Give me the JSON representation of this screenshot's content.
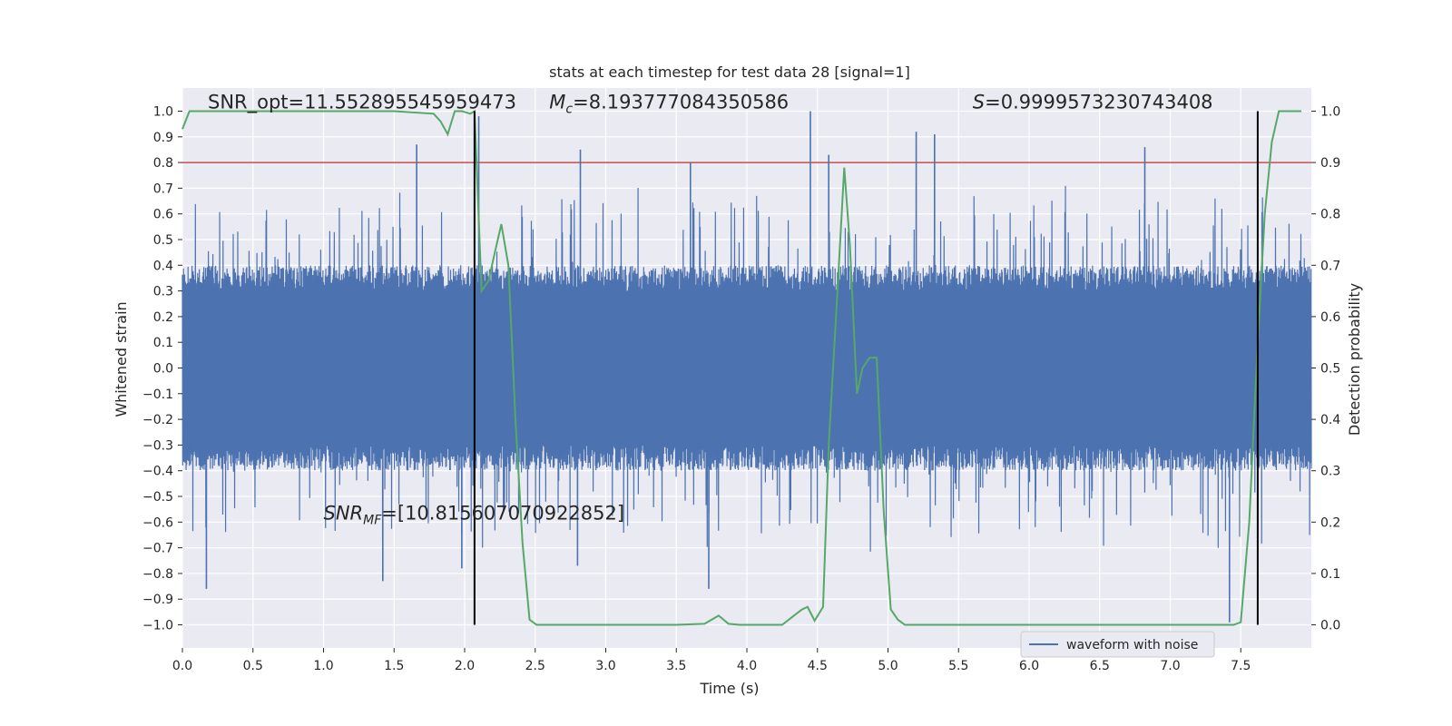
{
  "chart_data": {
    "type": "line",
    "title": "stats at each timestep for test data 28 [signal=1]",
    "xlabel": "Time (s)",
    "ylabel_left": "Whitened strain",
    "ylabel_right": "Detection probability",
    "xlim": [
      0.0,
      8.0
    ],
    "ylim_left": [
      -1.09,
      1.09
    ],
    "ylim_right": [
      -0.045,
      1.045
    ],
    "x_ticks": [
      0.0,
      0.5,
      1.0,
      1.5,
      2.0,
      2.5,
      3.0,
      3.5,
      4.0,
      4.5,
      5.0,
      5.5,
      6.0,
      6.5,
      7.0,
      7.5
    ],
    "x_tick_labels": [
      "0.0",
      "0.5",
      "1.0",
      "1.5",
      "2.0",
      "2.5",
      "3.0",
      "3.5",
      "4.0",
      "4.5",
      "5.0",
      "5.5",
      "6.0",
      "6.5",
      "7.0",
      "7.5"
    ],
    "y_left_ticks": [
      1.0,
      0.9,
      0.8,
      0.7,
      0.6,
      0.5,
      0.4,
      0.3,
      0.2,
      0.1,
      0.0,
      -0.1,
      -0.2,
      -0.3,
      -0.4,
      -0.5,
      -0.6,
      -0.7,
      -0.8,
      -0.9,
      -1.0
    ],
    "y_left_tick_labels": [
      "1.0",
      "0.9",
      "0.8",
      "0.7",
      "0.6",
      "0.5",
      "0.4",
      "0.3",
      "0.2",
      "0.1",
      "0.0",
      "−0.1",
      "−0.2",
      "−0.3",
      "−0.4",
      "−0.5",
      "−0.6",
      "−0.7",
      "−0.8",
      "−0.9",
      "−1.0"
    ],
    "y_right_ticks": [
      1.0,
      0.9,
      0.8,
      0.7,
      0.6,
      0.5,
      0.4,
      0.3,
      0.2,
      0.1,
      0.0
    ],
    "y_right_tick_labels": [
      "1.0",
      "0.9",
      "0.8",
      "0.7",
      "0.6",
      "0.5",
      "0.4",
      "0.3",
      "0.2",
      "0.1",
      "0.0"
    ],
    "threshold": {
      "axis": "right",
      "value": 0.9,
      "color": "#c44e52"
    },
    "vertical_markers": [
      {
        "x": 2.07,
        "y_range_left": [
          -1.0,
          1.0
        ],
        "color": "#000000"
      },
      {
        "x": 7.62,
        "y_range_left": [
          -1.0,
          1.0
        ],
        "color": "#000000"
      }
    ],
    "series": [
      {
        "name": "waveform with noise",
        "axis": "left",
        "color": "#4c72b0",
        "description": "dense noisy whitened strain signal, typical amplitude about ±0.4, peaks to about ±0.85",
        "sampling": {
          "n": 4000,
          "seed": 28,
          "core_amplitude": 0.4,
          "peak_amplitude": 0.72
        },
        "spikes": [
          {
            "x": 1.66,
            "y": 0.87
          },
          {
            "x": 2.82,
            "y": 0.85
          },
          {
            "x": 3.6,
            "y": 0.8
          },
          {
            "x": 4.45,
            "y": 1.0
          },
          {
            "x": 4.58,
            "y": 0.83
          },
          {
            "x": 5.2,
            "y": 0.92
          },
          {
            "x": 5.33,
            "y": 0.91
          },
          {
            "x": 6.82,
            "y": 0.86
          },
          {
            "x": 2.1,
            "y": 0.98
          },
          {
            "x": 1.42,
            "y": -0.83
          },
          {
            "x": 0.17,
            "y": -0.86
          },
          {
            "x": 3.73,
            "y": -0.86
          },
          {
            "x": 7.42,
            "y": -0.99
          },
          {
            "x": 1.98,
            "y": -0.78
          },
          {
            "x": 2.8,
            "y": -0.77
          }
        ]
      },
      {
        "name": "detection probability",
        "axis": "right",
        "color": "#55a868",
        "x": [
          0.0,
          0.05,
          0.2,
          0.5,
          1.0,
          1.5,
          1.78,
          1.83,
          1.88,
          1.93,
          1.98,
          2.04,
          2.07,
          2.12,
          2.17,
          2.21,
          2.26,
          2.31,
          2.36,
          2.41,
          2.46,
          2.51,
          2.6,
          3.0,
          3.5,
          3.7,
          3.8,
          3.87,
          3.95,
          4.1,
          4.25,
          4.32,
          4.39,
          4.43,
          4.48,
          4.54,
          4.58,
          4.64,
          4.69,
          4.73,
          4.78,
          4.82,
          4.87,
          4.92,
          4.97,
          5.02,
          5.07,
          5.12,
          5.5,
          6.0,
          6.5,
          7.0,
          7.3,
          7.45,
          7.5,
          7.56,
          7.62,
          7.67,
          7.72,
          7.77,
          7.82,
          7.87,
          7.93
        ],
        "y": [
          0.965,
          1.0,
          1.0,
          1.0,
          1.0,
          1.0,
          0.995,
          0.98,
          0.955,
          1.0,
          1.0,
          0.995,
          1.0,
          0.65,
          0.67,
          0.72,
          0.78,
          0.7,
          0.4,
          0.16,
          0.01,
          0.0,
          0.0,
          0.0,
          0.0,
          0.002,
          0.018,
          0.002,
          0.0,
          0.0,
          0.0,
          0.015,
          0.03,
          0.035,
          0.008,
          0.035,
          0.35,
          0.64,
          0.89,
          0.74,
          0.45,
          0.5,
          0.52,
          0.52,
          0.22,
          0.03,
          0.01,
          0.0,
          0.0,
          0.0,
          0.0,
          0.0,
          0.0,
          0.0,
          0.005,
          0.2,
          0.55,
          0.8,
          0.94,
          1.0,
          1.0,
          1.0,
          1.0
        ]
      }
    ],
    "annotations": [
      {
        "text": "SNR_opt=11.552895545959473",
        "x": 0.18,
        "y_left": 1.01,
        "italic_prefix": false
      },
      {
        "prefix": "M",
        "subscript": "c",
        "text": "=8.193777084350586",
        "x": 2.6,
        "y_left": 1.01
      },
      {
        "prefix": "S",
        "subscript": "",
        "text": "=0.9999573230743408",
        "x": 5.6,
        "y_left": 1.01
      },
      {
        "prefix": "SNR",
        "subscript": "MF",
        "text": "=[10.815607070922852]",
        "x": 1.0,
        "y_left": -0.59
      }
    ],
    "legend": {
      "entries": [
        "waveform with noise"
      ],
      "placement": "lower-right"
    },
    "grid": true
  }
}
